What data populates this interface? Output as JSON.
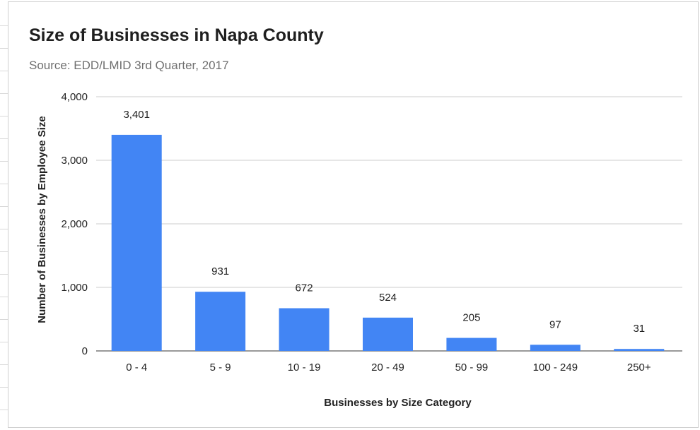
{
  "chart_data": {
    "type": "bar",
    "title": "Size of Businesses in Napa County",
    "subtitle": "Source: EDD/LMID 3rd Quarter, 2017",
    "xlabel": "Businesses by Size Category",
    "ylabel": "Number of Businesses by Employee Size",
    "categories": [
      "0 - 4",
      "5 - 9",
      "10 - 19",
      "20 - 49",
      "50 - 99",
      "100 - 249",
      "250+"
    ],
    "values": [
      3401,
      931,
      672,
      524,
      205,
      97,
      31
    ],
    "data_labels": [
      "3,401",
      "931",
      "672",
      "524",
      "205",
      "97",
      "31"
    ],
    "ylim": [
      0,
      4000
    ],
    "yticks": [
      0,
      1000,
      2000,
      3000,
      4000
    ],
    "ytick_labels": [
      "0",
      "1,000",
      "2,000",
      "3,000",
      "4,000"
    ],
    "grid": true,
    "legend": "none",
    "bar_color": "#4285f4"
  }
}
